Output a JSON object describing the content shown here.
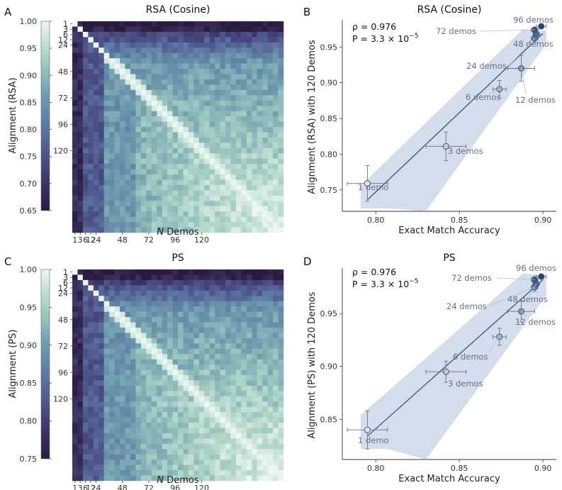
{
  "chart_data": [
    {
      "panel": "A",
      "type": "heatmap",
      "title": "RSA (Cosine)",
      "xlabel_italic": "N",
      "xlabel": " Demos",
      "ylabel": "Alignment (RSA)",
      "tick_labels": [
        "1",
        "3",
        "6",
        "12",
        "24",
        "48",
        "72",
        "96",
        "120"
      ],
      "colorbar": {
        "min": 0.65,
        "max": 1.0,
        "ticks": [
          "1.00",
          "0.95",
          "0.90",
          "0.85",
          "0.80",
          "0.75",
          "0.70",
          "0.65"
        ]
      },
      "n_cells": 40,
      "row_min": 0.67,
      "col_min": 0.7,
      "diag_value": 1.0
    },
    {
      "panel": "B",
      "type": "scatter",
      "title": "RSA (Cosine)",
      "xlabel": "Exact Match Accuracy",
      "ylabel": "Alignment (RSA) with 120 Demos",
      "xlim": [
        0.78,
        0.908
      ],
      "ylim": [
        0.72,
        0.988
      ],
      "xticks": [
        0.8,
        0.85,
        0.9
      ],
      "xtick_labels": [
        "0.80",
        "0.85",
        "0.90"
      ],
      "yticks": [
        0.75,
        0.8,
        0.85,
        0.9,
        0.95
      ],
      "ytick_labels": [
        "0.75",
        "0.80",
        "0.85",
        "0.90",
        "0.95"
      ],
      "stat_rho": "ρ = 0.976",
      "stat_p": "P = 3.3 × 10",
      "stat_p_exp": "−5",
      "fit": {
        "x1": 0.795,
        "y1": 0.736,
        "x2": 0.9,
        "y2": 0.969
      },
      "points": [
        {
          "label": "1 demo",
          "x": 0.795,
          "y": 0.759,
          "xerr": 0.012,
          "yerr": 0.025,
          "shade": 0
        },
        {
          "label": "3 demos",
          "x": 0.842,
          "y": 0.811,
          "xerr": 0.012,
          "yerr": 0.02,
          "shade": 1
        },
        {
          "label": "6 demos",
          "x": 0.874,
          "y": 0.891,
          "xerr": 0.004,
          "yerr": 0.012,
          "shade": 2
        },
        {
          "label": "12 demos",
          "x": 0.887,
          "y": 0.92,
          "xerr": 0.008,
          "yerr": 0.018,
          "shade": 3
        },
        {
          "label": "24 demos",
          "x": 0.895,
          "y": 0.962,
          "xerr": 0.002,
          "yerr": 0.006,
          "shade": 4
        },
        {
          "label": "48 demos",
          "x": 0.896,
          "y": 0.968,
          "xerr": 0.002,
          "yerr": 0.005,
          "shade": 5
        },
        {
          "label": "72 demos",
          "x": 0.895,
          "y": 0.974,
          "xerr": 0.002,
          "yerr": 0.004,
          "shade": 6
        },
        {
          "label": "96 demos",
          "x": 0.899,
          "y": 0.979,
          "xerr": 0.003,
          "yerr": 0.003,
          "shade": 7
        }
      ]
    },
    {
      "panel": "C",
      "type": "heatmap",
      "title": "PS",
      "xlabel_italic": "N",
      "xlabel": " Demos",
      "ylabel": "Alignment (PS)",
      "tick_labels": [
        "1",
        "3",
        "6",
        "12",
        "24",
        "48",
        "72",
        "96",
        "120"
      ],
      "colorbar": {
        "min": 0.75,
        "max": 1.0,
        "ticks": [
          "1.00",
          "0.95",
          "0.90",
          "0.85",
          "0.80",
          "0.75"
        ]
      },
      "n_cells": 40,
      "row_min": 0.76,
      "col_min": 0.77,
      "diag_value": 1.0
    },
    {
      "panel": "D",
      "type": "scatter",
      "title": "PS",
      "xlabel": "Exact Match Accuracy",
      "ylabel": "Alignment (PS) with 120 Demos",
      "xlim": [
        0.78,
        0.908
      ],
      "ylim": [
        0.812,
        0.993
      ],
      "xticks": [
        0.8,
        0.85,
        0.9
      ],
      "xtick_labels": [
        "0.80",
        "0.85",
        "0.90"
      ],
      "yticks": [
        0.85,
        0.9,
        0.95
      ],
      "ytick_labels": [
        "0.85",
        "0.90",
        "0.95"
      ],
      "stat_rho": "ρ = 0.976",
      "stat_p": "P = 3.3 × 10",
      "stat_p_exp": "−5",
      "fit": {
        "x1": 0.795,
        "y1": 0.834,
        "x2": 0.9,
        "y2": 0.982
      },
      "points": [
        {
          "label": "1 demo",
          "x": 0.795,
          "y": 0.84,
          "xerr": 0.012,
          "yerr": 0.018,
          "shade": 0
        },
        {
          "label": "3 demos",
          "x": 0.842,
          "y": 0.895,
          "xerr": 0.012,
          "yerr": 0.01,
          "shade": 1
        },
        {
          "label": "6 demos",
          "x": 0.874,
          "y": 0.928,
          "xerr": 0.004,
          "yerr": 0.008,
          "shade": 2
        },
        {
          "label": "12 demos",
          "x": 0.887,
          "y": 0.952,
          "xerr": 0.008,
          "yerr": 0.01,
          "shade": 3
        },
        {
          "label": "24 demos",
          "x": 0.895,
          "y": 0.975,
          "xerr": 0.002,
          "yerr": 0.004,
          "shade": 4
        },
        {
          "label": "48 demos",
          "x": 0.896,
          "y": 0.978,
          "xerr": 0.002,
          "yerr": 0.003,
          "shade": 5
        },
        {
          "label": "72 demos",
          "x": 0.895,
          "y": 0.982,
          "xerr": 0.002,
          "yerr": 0.003,
          "shade": 6
        },
        {
          "label": "96 demos",
          "x": 0.899,
          "y": 0.985,
          "xerr": 0.003,
          "yerr": 0.002,
          "shade": 7
        }
      ]
    }
  ]
}
